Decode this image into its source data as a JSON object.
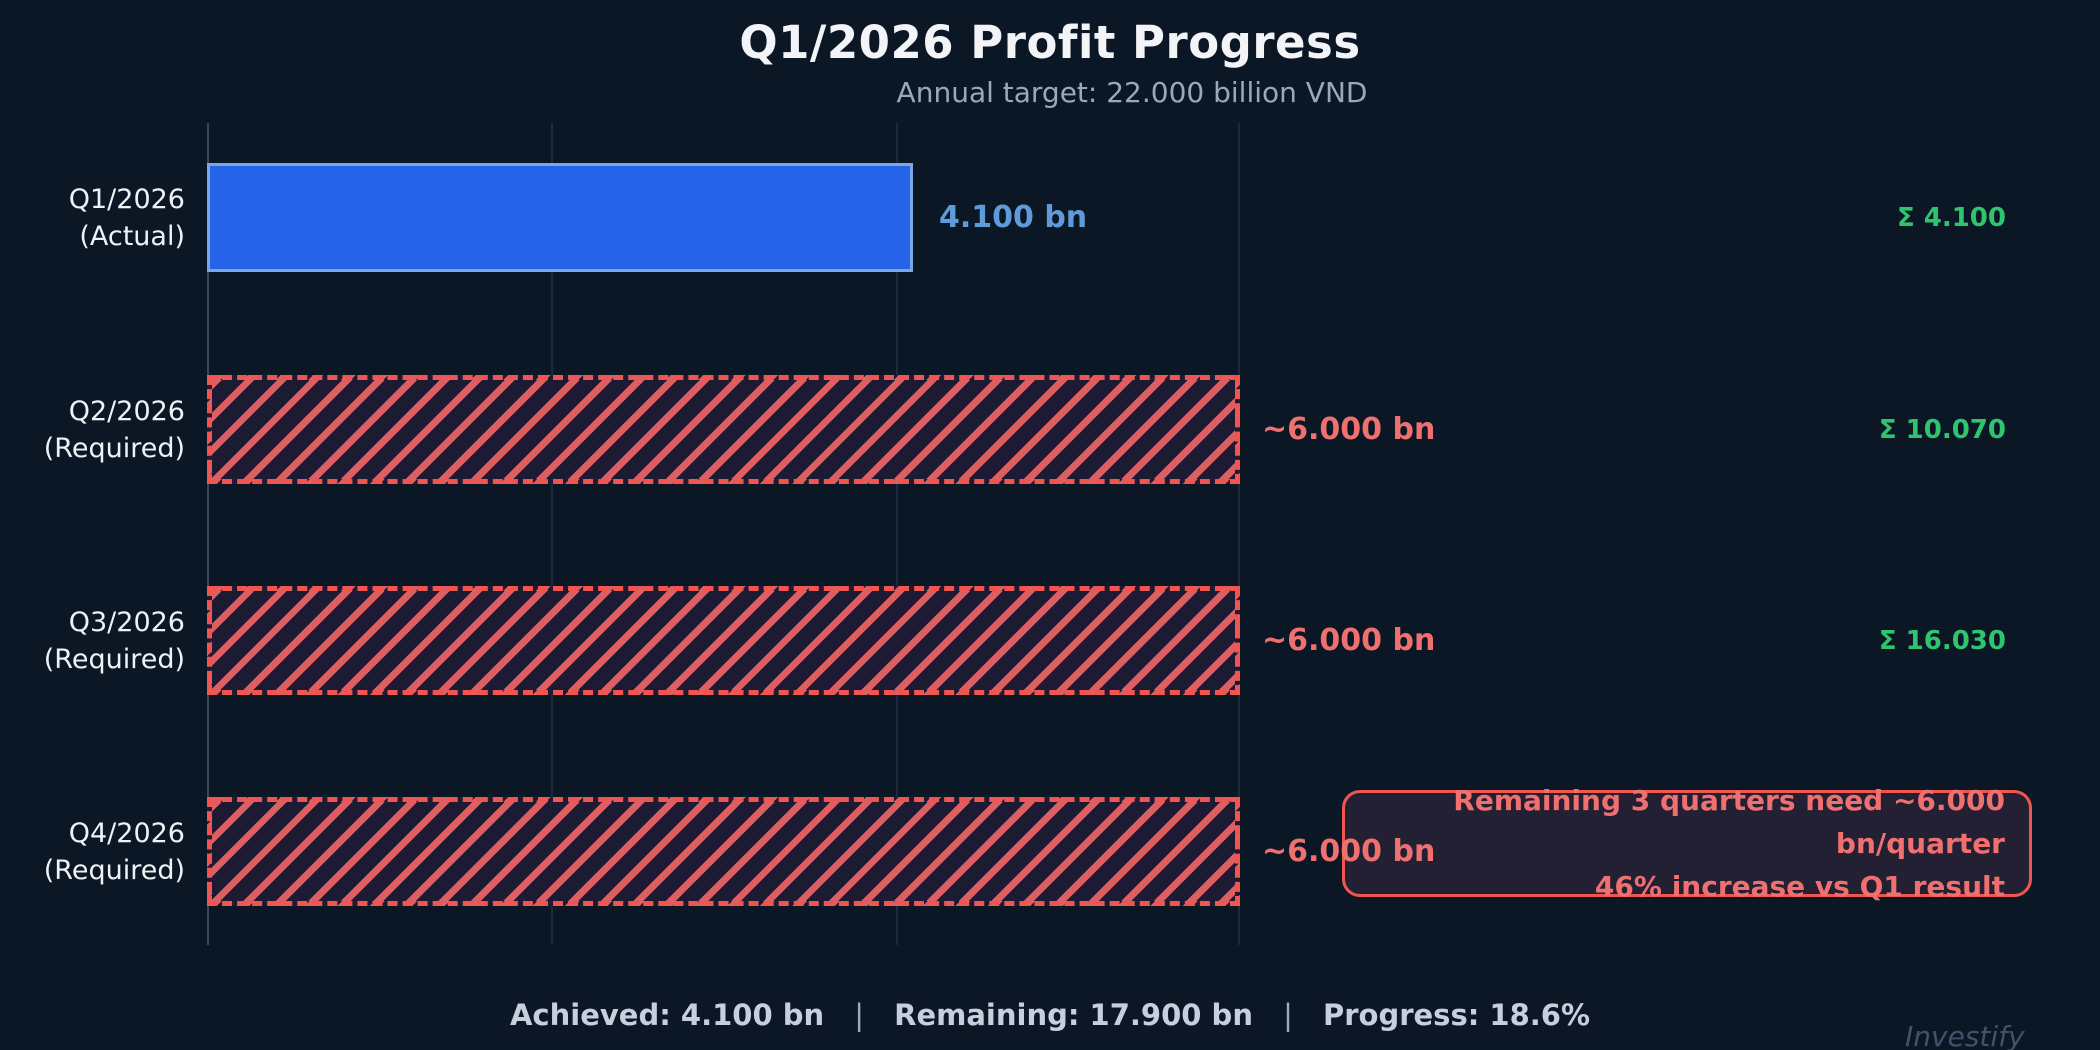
{
  "colors": {
    "background": "#0c1726",
    "actual_bar": "#2563e8",
    "actual_bar_border": "#7aa8e2",
    "actual_value_text": "#5f9bdb",
    "required_stripe": "#dd5f62",
    "required_bg": "#1d1b33",
    "required_border": "#f25550",
    "required_value_text": "#f07070",
    "cumulative_text": "#2fc46e",
    "title_text": "#f2f4f8",
    "subtitle_text": "#9aa8ba",
    "footer_text": "#c6cfdd",
    "gridline": "#1d2a3d",
    "axis_spine": "#3a4659",
    "watermark_text": "#41526a",
    "annotation_border": "#ef564e",
    "annotation_fill": "#242034",
    "annotation_text": "#f07070"
  },
  "header": {
    "title": "Q1/2026 Profit Progress",
    "subtitle": "Annual target: 22.000 billion VND"
  },
  "chart_data": {
    "type": "bar",
    "orientation": "horizontal",
    "title": "Q1/2026 Profit Progress",
    "subtitle": "Annual target: 22.000 billion VND",
    "xlabel": "",
    "ylabel": "",
    "unit": "billion VND",
    "annual_target_bn": 22.0,
    "xlim": [
      0,
      6
    ],
    "gridline_values": [
      0,
      2,
      4,
      6
    ],
    "grid": "vertical gridlines only, no x tick labels",
    "legend": "none",
    "categories": [
      "Q1/2026 (Actual)",
      "Q2/2026 (Required)",
      "Q3/2026 (Required)",
      "Q4/2026 (Required)"
    ],
    "values": [
      4.1,
      6.0,
      6.0,
      6.0
    ],
    "bar_styles": [
      "solid-blue",
      "red-diagonal-hatch-dashed-border",
      "red-diagonal-hatch-dashed-border",
      "red-diagonal-hatch-dashed-border"
    ],
    "value_labels": [
      "4.100 bn",
      "~6.000 bn",
      "~6.000 bn",
      "~6.000 bn"
    ],
    "cumulative_labels": [
      "Σ 4.100",
      "Σ 10.070",
      "Σ 16.030",
      ""
    ],
    "annotation": "Remaining 3 quarters need ~6.000 bn/quarter | 46% increase vs Q1 result",
    "footer_stats": {
      "achieved_bn": 4.1,
      "remaining_bn": 17.9,
      "progress_pct": 18.6
    }
  },
  "rows": [
    {
      "label_line1": "Q1/2026",
      "label_line2": "(Actual)",
      "kind": "actual",
      "value_label": "4.100 bn",
      "cumulative": "Σ 4.100"
    },
    {
      "label_line1": "Q2/2026",
      "label_line2": "(Required)",
      "kind": "required",
      "value_label": "~6.000 bn",
      "cumulative": "Σ 10.070"
    },
    {
      "label_line1": "Q3/2026",
      "label_line2": "(Required)",
      "kind": "required",
      "value_label": "~6.000 bn",
      "cumulative": "Σ 16.030"
    },
    {
      "label_line1": "Q4/2026",
      "label_line2": "(Required)",
      "kind": "required",
      "value_label": "~6.000 bn",
      "cumulative": ""
    }
  ],
  "annotation": {
    "line1": "Remaining 3 quarters need ~6.000 bn/quarter",
    "line2": "46% increase vs Q1 result"
  },
  "footer": {
    "achieved": "Achieved: 4.100 bn",
    "separator": "|",
    "remaining": "Remaining: 17.900 bn",
    "progress": "Progress: 18.6%"
  },
  "watermark": "Investify"
}
